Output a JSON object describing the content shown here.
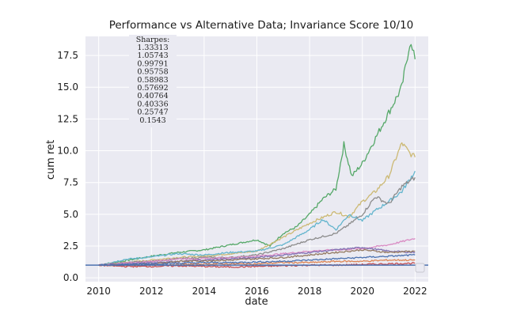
{
  "chart_data": {
    "type": "line",
    "title": "Performance vs Alternative Data; Invariance Score 10/10",
    "xlabel": "date",
    "ylabel": "cum ret",
    "xlim": [
      2009.5,
      2022.5
    ],
    "ylim": [
      -0.3,
      19.0
    ],
    "x_ticks": [
      2010,
      2012,
      2014,
      2016,
      2018,
      2020,
      2022
    ],
    "y_ticks": [
      0.0,
      2.5,
      5.0,
      7.5,
      10.0,
      12.5,
      15.0,
      17.5
    ],
    "y_tick_labels": [
      "0.0",
      "2.5",
      "5.0",
      "7.5",
      "10.0",
      "12.5",
      "15.0",
      "17.5"
    ],
    "grid": true,
    "legend": "lower-right (empty box)",
    "sharpes_title": "Sharpes:",
    "sharpes": [
      "1.33313",
      "1.05743",
      "0.99791",
      "0.95758",
      "0.58983",
      "0.57692",
      "0.40764",
      "0.40336",
      "0.25747",
      "0.1543"
    ],
    "baseline": {
      "value": 1.0,
      "color": "#4c72b0"
    },
    "series": [
      {
        "color": "#55a868",
        "x": [
          2010,
          2011,
          2012,
          2013,
          2014,
          2015,
          2016,
          2016.5,
          2017,
          2017.5,
          2018,
          2018.5,
          2019,
          2019.3,
          2019.6,
          2020,
          2020.5,
          2021,
          2021.5,
          2021.8,
          2022
        ],
        "values": [
          1.0,
          1.35,
          1.7,
          2.0,
          2.2,
          2.6,
          3.0,
          2.5,
          3.5,
          4.0,
          5.0,
          6.2,
          7.0,
          10.5,
          8.0,
          9.0,
          11.0,
          13.0,
          15.0,
          18.5,
          17.2
        ]
      },
      {
        "color": "#ccb974",
        "x": [
          2010,
          2011,
          2012,
          2013,
          2014,
          2015,
          2016,
          2017,
          2018,
          2019,
          2019.5,
          2020,
          2020.5,
          2021,
          2021.5,
          2021.8,
          2022
        ],
        "values": [
          1.0,
          1.2,
          1.4,
          1.6,
          1.7,
          1.9,
          2.1,
          3.2,
          4.3,
          5.2,
          4.8,
          6.0,
          6.8,
          8.0,
          10.6,
          9.8,
          9.5
        ]
      },
      {
        "color": "#64b5cd",
        "x": [
          2010,
          2011,
          2012,
          2013,
          2014,
          2015,
          2016,
          2017,
          2018,
          2018.5,
          2019,
          2019.5,
          2020,
          2020.5,
          2021,
          2021.5,
          2022
        ],
        "values": [
          1.0,
          1.45,
          1.65,
          1.9,
          1.8,
          2.0,
          2.1,
          2.6,
          3.8,
          4.6,
          3.8,
          5.0,
          4.5,
          5.3,
          6.0,
          6.8,
          8.4
        ]
      },
      {
        "color": "#8c8c8c",
        "x": [
          2010,
          2011,
          2012,
          2013,
          2014,
          2015,
          2016,
          2017,
          2018,
          2019,
          2019.5,
          2020,
          2020.5,
          2021,
          2021.5,
          2022
        ],
        "values": [
          1.0,
          1.2,
          1.3,
          1.5,
          1.6,
          1.6,
          1.8,
          2.3,
          3.0,
          3.5,
          4.2,
          5.0,
          6.4,
          5.8,
          7.2,
          7.9
        ]
      },
      {
        "color": "#da8bc3",
        "x": [
          2010,
          2011,
          2012,
          2013,
          2014,
          2015,
          2016,
          2017,
          2018,
          2019,
          2020,
          2021,
          2022
        ],
        "values": [
          1.0,
          1.15,
          1.3,
          1.5,
          1.5,
          1.6,
          1.7,
          1.9,
          2.1,
          2.2,
          2.3,
          2.6,
          3.1
        ]
      },
      {
        "color": "#8172b3",
        "x": [
          2010,
          2011,
          2012,
          2013,
          2014,
          2015,
          2016,
          2017,
          2018,
          2019,
          2020,
          2021,
          2022
        ],
        "values": [
          1.0,
          1.1,
          1.2,
          1.3,
          1.4,
          1.5,
          1.6,
          1.8,
          2.0,
          2.2,
          2.4,
          2.1,
          2.0
        ]
      },
      {
        "color": "#937860",
        "x": [
          2010,
          2011,
          2012,
          2013,
          2014,
          2015,
          2016,
          2017,
          2018,
          2019,
          2020,
          2021,
          2022
        ],
        "values": [
          1.0,
          1.0,
          1.1,
          1.3,
          1.35,
          1.4,
          1.5,
          1.6,
          1.8,
          2.0,
          2.2,
          2.0,
          2.1
        ]
      },
      {
        "color": "#dd8452",
        "x": [
          2010,
          2011,
          2012,
          2013,
          2014,
          2015,
          2016,
          2017,
          2018,
          2019,
          2020,
          2021,
          2022
        ],
        "values": [
          1.0,
          0.95,
          1.0,
          1.05,
          1.1,
          1.1,
          1.1,
          1.2,
          1.2,
          1.3,
          1.3,
          1.4,
          1.4
        ]
      },
      {
        "color": "#c44e52",
        "x": [
          2010,
          2011,
          2012,
          2013,
          2014,
          2015,
          2016,
          2017,
          2018,
          2019,
          2020,
          2021,
          2022
        ],
        "values": [
          1.0,
          0.9,
          0.9,
          0.95,
          0.9,
          0.85,
          0.9,
          0.95,
          1.0,
          1.0,
          1.05,
          1.1,
          1.15
        ]
      },
      {
        "color": "#4c72b0",
        "x": [
          2010,
          2011,
          2012,
          2013,
          2014,
          2015,
          2016,
          2017,
          2018,
          2019,
          2020,
          2021,
          2022
        ],
        "values": [
          1.0,
          1.05,
          1.1,
          1.15,
          1.2,
          1.2,
          1.25,
          1.3,
          1.4,
          1.5,
          1.6,
          1.7,
          1.8
        ]
      }
    ]
  }
}
